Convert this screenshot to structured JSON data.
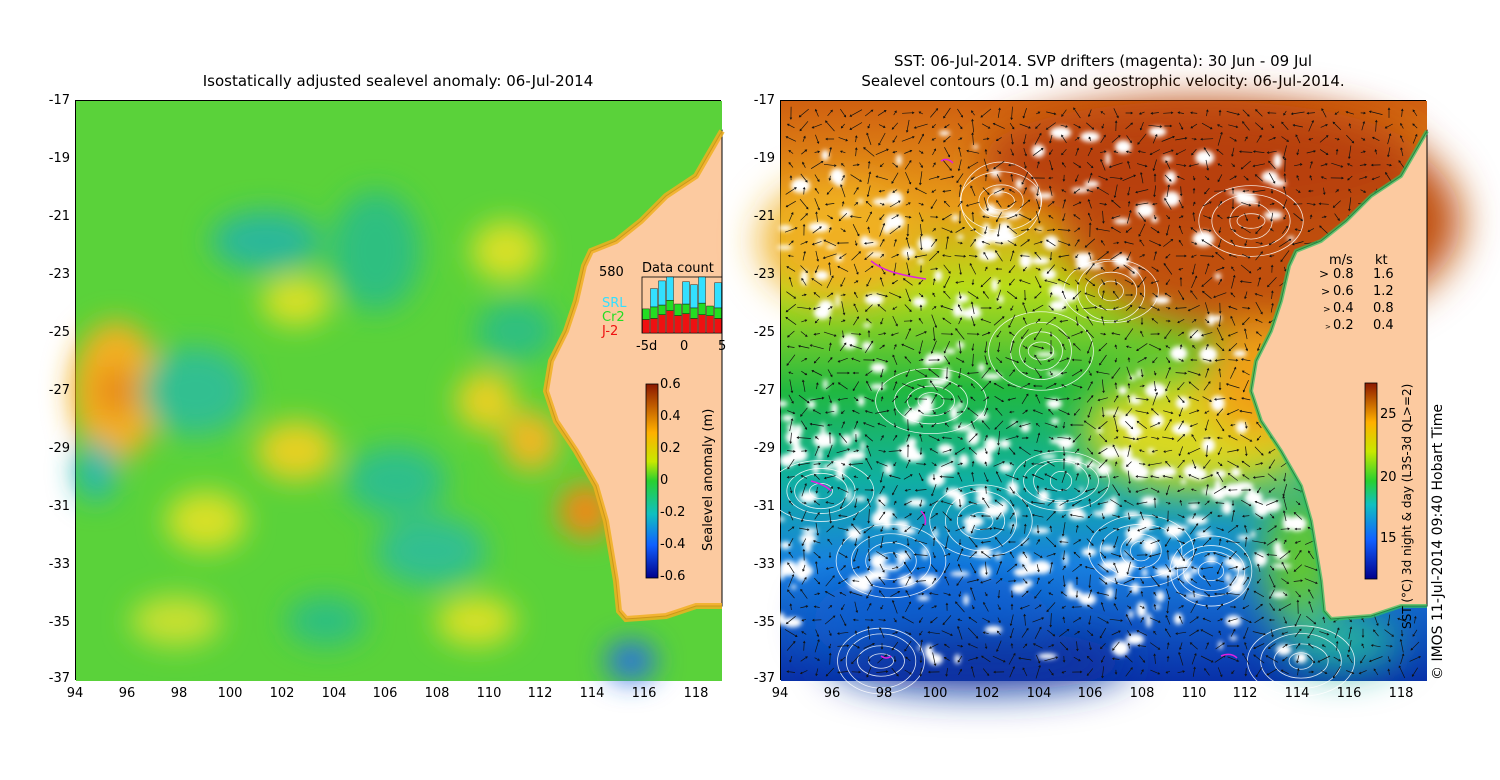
{
  "left_panel": {
    "title": "Isostatically adjusted sealevel anomaly: 06-Jul-2014",
    "colorbar": {
      "label": "Sealevel anomaly (m)",
      "ticks": [
        "0.6",
        "0.4",
        "0.2",
        "0",
        "-0.2",
        "-0.4",
        "-0.6"
      ]
    },
    "data_count": {
      "title": "Data count",
      "max_label": "580",
      "x_ticks": [
        "-5d",
        "0",
        "5"
      ],
      "legend": [
        {
          "label": "SRL",
          "color": "#33e0ff"
        },
        {
          "label": "Cr2",
          "color": "#22dd22"
        },
        {
          "label": "J-2",
          "color": "#ee1111"
        }
      ],
      "days": [
        -5,
        -4,
        -3,
        -2,
        -1,
        0,
        1,
        2,
        3,
        4
      ],
      "j2": [
        140,
        150,
        190,
        230,
        180,
        200,
        150,
        190,
        180,
        150
      ],
      "cr2": [
        110,
        120,
        100,
        110,
        120,
        100,
        110,
        120,
        100,
        110
      ],
      "srl": [
        0,
        190,
        250,
        240,
        0,
        230,
        240,
        270,
        0,
        260
      ]
    }
  },
  "right_panel": {
    "title_line1": "SST: 06-Jul-2014. SVP drifters (magenta): 30 Jun - 09 Jul",
    "title_line2": "Sealevel contours (0.1 m) and geostrophic velocity: 06-Jul-2014.",
    "colorbar": {
      "label": "SST (°C) 3d night & day (L3S-3d QL>=2)",
      "ticks": [
        "25",
        "20",
        "15"
      ]
    },
    "velocity_legend": {
      "header_ms": "m/s",
      "header_kt": "kt",
      "rows": [
        {
          "ms": "0.8",
          "kt": "1.6"
        },
        {
          "ms": "0.6",
          "kt": "1.2"
        },
        {
          "ms": "0.4",
          "kt": "0.8"
        },
        {
          "ms": "0.2",
          "kt": "0.4"
        }
      ]
    },
    "credit": "© IMOS 11-Jul-2014 09:40 Hobart Time"
  },
  "axes": {
    "y_ticks": [
      "-17",
      "-19",
      "-21",
      "-23",
      "-25",
      "-27",
      "-29",
      "-31",
      "-33",
      "-35",
      "-37"
    ],
    "x_ticks": [
      "94",
      "96",
      "98",
      "100",
      "102",
      "104",
      "106",
      "108",
      "110",
      "112",
      "114",
      "116",
      "118"
    ]
  },
  "colors": {
    "land": "#fccaa0",
    "coast": "#000000"
  }
}
